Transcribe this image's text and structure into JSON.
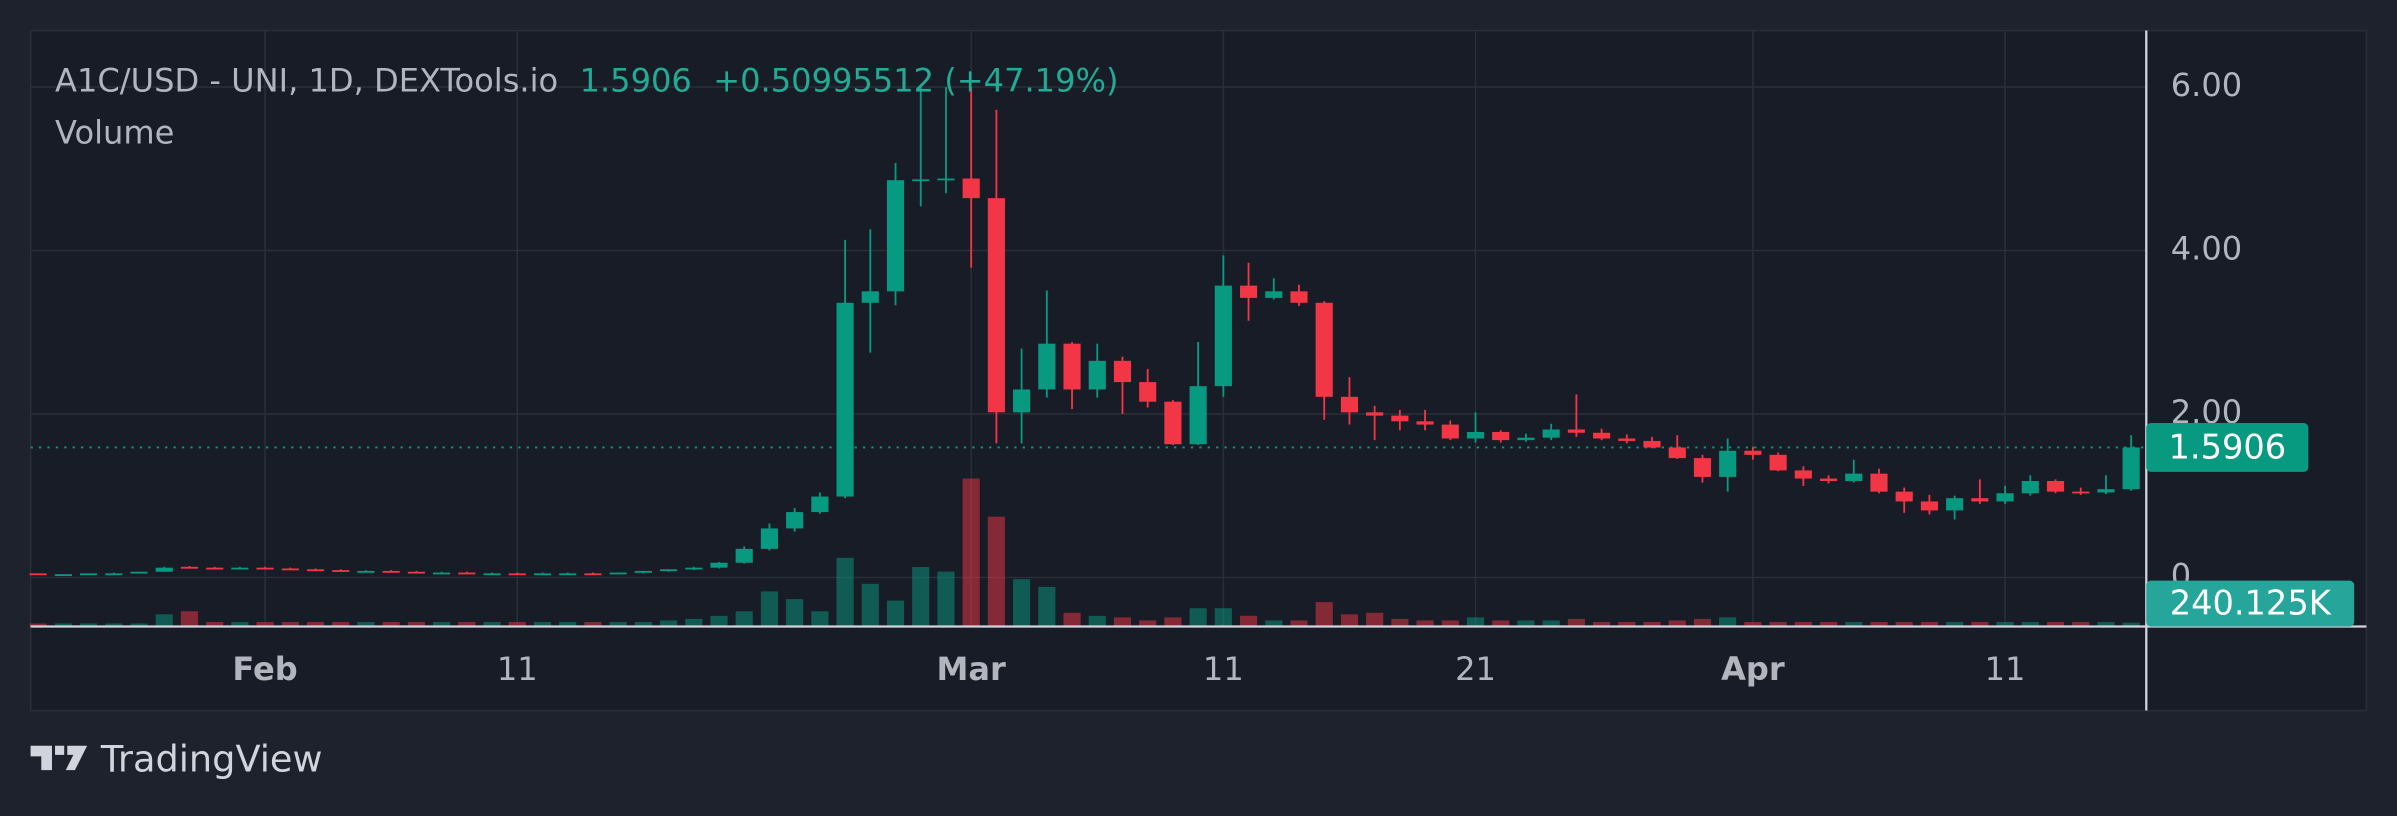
{
  "chart_data": {
    "type": "candlestick",
    "title": "A1C/USD - UNI, 1D, DEXTools.io",
    "change": "+0.50995512 (+47.19%)",
    "up_color": "#089981",
    "down_color": "#f23645",
    "grid": true,
    "watermark": "TradingView",
    "x": [
      23,
      24,
      25,
      26,
      27,
      28,
      29,
      30,
      31,
      32,
      33,
      34,
      35,
      36,
      37,
      38,
      39,
      40,
      41,
      42,
      43,
      44,
      45,
      46,
      47,
      48,
      49,
      50,
      51,
      52,
      53,
      54,
      55,
      56,
      57,
      58,
      59,
      60,
      61,
      62,
      63,
      64,
      65,
      66,
      67,
      68,
      69,
      70,
      71,
      72,
      73,
      74,
      75,
      76,
      77,
      78,
      79,
      80,
      81,
      82,
      83,
      84,
      85,
      86,
      87,
      88,
      89,
      90,
      91,
      92,
      93,
      94,
      95,
      96,
      97,
      98,
      99,
      100,
      101,
      102,
      103,
      104,
      105,
      106
    ],
    "open": [
      0.05,
      0.03,
      0.04,
      0.05,
      0.05,
      0.07,
      0.13,
      0.12,
      0.11,
      0.12,
      0.11,
      0.1,
      0.09,
      0.08,
      0.08,
      0.07,
      0.06,
      0.06,
      0.05,
      0.05,
      0.04,
      0.05,
      0.05,
      0.04,
      0.06,
      0.08,
      0.1,
      0.12,
      0.18,
      0.35,
      0.6,
      0.8,
      0.99,
      3.36,
      3.5,
      4.86,
      4.87,
      4.88,
      4.64,
      2.02,
      2.3,
      2.86,
      2.3,
      2.65,
      2.39,
      2.15,
      1.63,
      2.34,
      3.57,
      3.42,
      3.5,
      3.36,
      2.21,
      2.02,
      1.98,
      1.91,
      1.87,
      1.7,
      1.78,
      1.68,
      1.71,
      1.81,
      1.77,
      1.7,
      1.67,
      1.59,
      1.46,
      1.23,
      1.55,
      1.5,
      1.31,
      1.21,
      1.18,
      1.27,
      1.05,
      0.93,
      0.82,
      0.97,
      0.93,
      1.03,
      1.18,
      1.05,
      1.04,
      1.08
    ],
    "high": [
      0.05,
      0.04,
      0.05,
      0.06,
      0.07,
      0.13,
      0.14,
      0.13,
      0.13,
      0.13,
      0.12,
      0.11,
      0.1,
      0.09,
      0.09,
      0.08,
      0.07,
      0.07,
      0.06,
      0.06,
      0.06,
      0.06,
      0.06,
      0.06,
      0.08,
      0.1,
      0.13,
      0.19,
      0.38,
      0.66,
      0.85,
      1.04,
      4.13,
      4.26,
      5.07,
      6.0,
      6.0,
      6.0,
      5.72,
      2.8,
      3.51,
      2.88,
      2.86,
      2.7,
      2.55,
      2.17,
      2.88,
      3.94,
      3.85,
      3.66,
      3.58,
      3.38,
      2.45,
      2.1,
      2.05,
      2.05,
      1.92,
      2.02,
      1.8,
      1.76,
      1.88,
      2.24,
      1.82,
      1.75,
      1.72,
      1.74,
      1.5,
      1.7,
      1.6,
      1.53,
      1.36,
      1.25,
      1.44,
      1.33,
      1.1,
      1.01,
      1.0,
      1.2,
      1.12,
      1.25,
      1.2,
      1.1,
      1.25,
      1.74
    ],
    "low": [
      0.03,
      0.03,
      0.04,
      0.04,
      0.05,
      0.07,
      0.11,
      0.1,
      0.1,
      0.1,
      0.09,
      0.08,
      0.08,
      0.07,
      0.06,
      0.06,
      0.05,
      0.05,
      0.04,
      0.04,
      0.04,
      0.04,
      0.04,
      0.04,
      0.05,
      0.07,
      0.09,
      0.11,
      0.17,
      0.33,
      0.56,
      0.78,
      0.97,
      2.75,
      3.33,
      4.54,
      4.7,
      3.79,
      1.64,
      1.64,
      2.2,
      2.06,
      2.2,
      2.0,
      2.08,
      1.62,
      1.62,
      2.21,
      3.14,
      3.4,
      3.32,
      1.93,
      1.87,
      1.68,
      1.8,
      1.8,
      1.68,
      1.65,
      1.65,
      1.66,
      1.68,
      1.72,
      1.68,
      1.64,
      1.58,
      1.45,
      1.16,
      1.05,
      1.44,
      1.3,
      1.12,
      1.15,
      1.16,
      1.03,
      0.79,
      0.77,
      0.71,
      0.9,
      0.9,
      1.0,
      1.03,
      1.01,
      1.02,
      1.06
    ],
    "close": [
      0.03,
      0.04,
      0.05,
      0.05,
      0.07,
      0.12,
      0.12,
      0.11,
      0.12,
      0.11,
      0.1,
      0.09,
      0.08,
      0.08,
      0.07,
      0.06,
      0.06,
      0.05,
      0.05,
      0.04,
      0.05,
      0.05,
      0.04,
      0.06,
      0.08,
      0.1,
      0.12,
      0.18,
      0.35,
      0.6,
      0.8,
      0.99,
      3.36,
      3.5,
      4.86,
      4.87,
      4.88,
      4.64,
      2.02,
      2.3,
      2.86,
      2.3,
      2.65,
      2.39,
      2.15,
      1.63,
      2.34,
      3.57,
      3.42,
      3.5,
      3.36,
      2.21,
      2.02,
      1.98,
      1.91,
      1.87,
      1.7,
      1.78,
      1.68,
      1.71,
      1.81,
      1.77,
      1.7,
      1.67,
      1.59,
      1.46,
      1.23,
      1.55,
      1.5,
      1.31,
      1.21,
      1.18,
      1.27,
      1.05,
      0.93,
      0.82,
      0.97,
      0.93,
      1.03,
      1.18,
      1.05,
      1.04,
      1.08,
      1.5906
    ],
    "volume": {
      "name": "Volume",
      "values": [
        192000,
        192000,
        192000,
        192000,
        192000,
        768000,
        960000,
        288000,
        288000,
        288000,
        288000,
        288000,
        288000,
        288000,
        288000,
        288000,
        288000,
        288000,
        288000,
        288000,
        288000,
        288000,
        288000,
        288000,
        288000,
        384000,
        480000,
        672000,
        960000,
        2208000,
        1728000,
        960000,
        4320000,
        2688000,
        1632000,
        3744000,
        3456000,
        9312000,
        6912000,
        2976000,
        2496000,
        864000,
        672000,
        576000,
        384000,
        576000,
        1152000,
        1152000,
        672000,
        384000,
        384000,
        1536000,
        768000,
        864000,
        480000,
        384000,
        384000,
        576000,
        384000,
        384000,
        384000,
        480000,
        288000,
        288000,
        288000,
        384000,
        480000,
        576000,
        288000,
        288000,
        288000,
        288000,
        288000,
        288000,
        288000,
        288000,
        288000,
        288000,
        288000,
        288000,
        288000,
        288000,
        288000,
        240125
      ],
      "value_labels": [
        null,
        null,
        null,
        null,
        null,
        null,
        null,
        null,
        null,
        null,
        null,
        null,
        null,
        null,
        null,
        null,
        null,
        null,
        null,
        null,
        null,
        null,
        null,
        null,
        null,
        null,
        null,
        null,
        null,
        null,
        null,
        null,
        null,
        null,
        null,
        null,
        null,
        null,
        null,
        null,
        null,
        null,
        null,
        null,
        null,
        null,
        null,
        null,
        null,
        null,
        null,
        null,
        null,
        null,
        null,
        null,
        null,
        null,
        null,
        null,
        null,
        null,
        null,
        null,
        null,
        null,
        null,
        null,
        null,
        null,
        null,
        null,
        null,
        null,
        null,
        null,
        null,
        null,
        null,
        null,
        null,
        null,
        null,
        "240.125K"
      ]
    },
    "volume_lim": [
      0,
      10000000
    ],
    "xlim": [
      22.7,
      106.6
    ],
    "xticks": [
      {
        "value": 32,
        "label": "Feb"
      },
      {
        "value": 42,
        "label": "11"
      },
      {
        "value": 60,
        "label": "Mar"
      },
      {
        "value": 70,
        "label": "11"
      },
      {
        "value": 80,
        "label": "21"
      },
      {
        "value": 91,
        "label": "Apr"
      },
      {
        "value": 101,
        "label": "11"
      }
    ],
    "ylim": [
      -0.6,
      6.69
    ],
    "yticks": [
      0,
      {
        "value": 2,
        "label": "2.00"
      },
      {
        "value": 4,
        "label": "4.00"
      },
      {
        "value": 6,
        "label": "6.00"
      }
    ]
  }
}
